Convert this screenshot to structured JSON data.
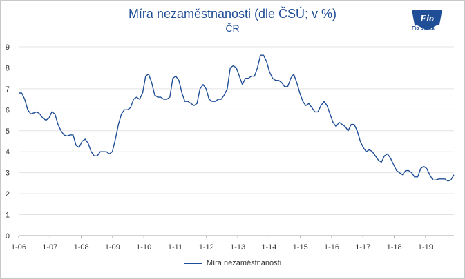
{
  "chart_data": {
    "type": "line",
    "title": "Míra nezaměstnanosti (dle ČSÚ; v %)",
    "subtitle": "ČR",
    "xlabel": "",
    "ylabel": "",
    "ylim": [
      0,
      9
    ],
    "y_ticks": [
      0,
      1,
      2,
      3,
      4,
      5,
      6,
      7,
      8,
      9
    ],
    "x_ticks": [
      "1-06",
      "1-07",
      "1-08",
      "1-09",
      "1-10",
      "1-11",
      "1-12",
      "1-13",
      "1-14",
      "1-15",
      "1-16",
      "1-17",
      "1-18",
      "1-19"
    ],
    "grid": "horizontal",
    "legend": "bottom",
    "series": [
      {
        "name": "Míra nezaměstnanosti",
        "color": "#1f4e96",
        "values": [
          6.8,
          6.8,
          6.5,
          6.0,
          5.8,
          5.85,
          5.9,
          5.8,
          5.6,
          5.5,
          5.6,
          5.9,
          5.8,
          5.3,
          5.0,
          4.8,
          4.75,
          4.8,
          4.8,
          4.3,
          4.2,
          4.5,
          4.6,
          4.4,
          4.0,
          3.8,
          3.8,
          4.0,
          4.0,
          4.0,
          3.9,
          4.0,
          4.6,
          5.3,
          5.8,
          6.0,
          6.0,
          6.1,
          6.5,
          6.6,
          6.5,
          6.8,
          7.6,
          7.7,
          7.3,
          6.7,
          6.6,
          6.6,
          6.5,
          6.5,
          6.6,
          7.5,
          7.6,
          7.4,
          6.8,
          6.4,
          6.4,
          6.3,
          6.2,
          6.3,
          7.0,
          7.2,
          7.0,
          6.5,
          6.4,
          6.4,
          6.5,
          6.5,
          6.7,
          7.0,
          8.0,
          8.1,
          8.0,
          7.6,
          7.2,
          7.5,
          7.5,
          7.6,
          7.6,
          8.0,
          8.6,
          8.6,
          8.3,
          7.8,
          7.5,
          7.4,
          7.4,
          7.3,
          7.1,
          7.1,
          7.5,
          7.7,
          7.3,
          6.8,
          6.4,
          6.2,
          6.3,
          6.1,
          5.9,
          5.9,
          6.2,
          6.4,
          6.2,
          5.8,
          5.4,
          5.2,
          5.4,
          5.3,
          5.2,
          5.0,
          5.3,
          5.3,
          5.0,
          4.5,
          4.2,
          4.0,
          4.1,
          4.0,
          3.8,
          3.6,
          3.5,
          3.8,
          3.9,
          3.7,
          3.4,
          3.1,
          3.0,
          2.9,
          3.1,
          3.1,
          3.0,
          2.8,
          2.8,
          3.2,
          3.3,
          3.2,
          2.9,
          2.65,
          2.65,
          2.7,
          2.7,
          2.7,
          2.6,
          2.65,
          2.9
        ]
      }
    ]
  },
  "logo": {
    "brand": "Fio",
    "caption": "Fio banka"
  }
}
